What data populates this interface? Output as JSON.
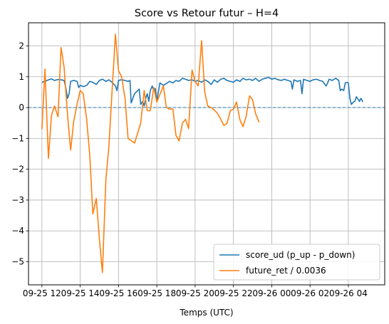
{
  "chart_data": {
    "type": "line",
    "title": "Score vs Retour futur – H=4",
    "xlabel": "Temps (UTC)",
    "ylabel": "",
    "ylim": [
      -5.75,
      2.75
    ],
    "xlim": [
      -0.35,
      8.95
    ],
    "grid": true,
    "legend_position": "lower-right",
    "x_ticks": [
      {
        "v": 0,
        "label": "09-25 12"
      },
      {
        "v": 1,
        "label": "09-25 14"
      },
      {
        "v": 2,
        "label": "09-25 16"
      },
      {
        "v": 3,
        "label": "09-25 18"
      },
      {
        "v": 4,
        "label": "09-25 20"
      },
      {
        "v": 5,
        "label": "09-25 22"
      },
      {
        "v": 6,
        "label": "09-26 00"
      },
      {
        "v": 7,
        "label": "09-26 02"
      },
      {
        "v": 8,
        "label": "09-26 04"
      }
    ],
    "y_ticks": [
      {
        "v": 2,
        "label": "2"
      },
      {
        "v": 1,
        "label": "1"
      },
      {
        "v": 0,
        "label": "0"
      },
      {
        "v": -1,
        "label": "−1"
      },
      {
        "v": -2,
        "label": "−2"
      },
      {
        "v": -3,
        "label": "−3"
      },
      {
        "v": -4,
        "label": "−4"
      },
      {
        "v": -5,
        "label": "−5"
      }
    ],
    "hline": {
      "y": 0,
      "color": "#1f77b4",
      "style": "dashed"
    },
    "series": [
      {
        "name": "score_ud (p_up - p_down)",
        "color": "#1f77b4",
        "points": [
          [
            0,
            0.82
          ],
          [
            0.08,
            0.85
          ],
          [
            0.17,
            0.9
          ],
          [
            0.25,
            0.93
          ],
          [
            0.33,
            0.88
          ],
          [
            0.42,
            0.91
          ],
          [
            0.5,
            0.9
          ],
          [
            0.58,
            0.88
          ],
          [
            0.63,
            0.6
          ],
          [
            0.67,
            0.3
          ],
          [
            0.71,
            0.45
          ],
          [
            0.75,
            0.85
          ],
          [
            0.83,
            0.88
          ],
          [
            0.92,
            0.85
          ],
          [
            0.96,
            0.65
          ],
          [
            1,
            0.72
          ],
          [
            1.08,
            0.68
          ],
          [
            1.17,
            0.72
          ],
          [
            1.25,
            0.85
          ],
          [
            1.33,
            0.82
          ],
          [
            1.42,
            0.75
          ],
          [
            1.5,
            0.88
          ],
          [
            1.58,
            0.92
          ],
          [
            1.67,
            0.85
          ],
          [
            1.75,
            0.9
          ],
          [
            1.83,
            0.82
          ],
          [
            1.92,
            0.7
          ],
          [
            1.96,
            0.55
          ],
          [
            2,
            0.88
          ],
          [
            2.08,
            0.9
          ],
          [
            2.17,
            0.88
          ],
          [
            2.25,
            0.85
          ],
          [
            2.3,
            0.88
          ],
          [
            2.33,
            0.15
          ],
          [
            2.42,
            0.45
          ],
          [
            2.5,
            0.55
          ],
          [
            2.54,
            0.6
          ],
          [
            2.58,
            0.1
          ],
          [
            2.63,
            0.2
          ],
          [
            2.67,
            0.05
          ],
          [
            2.71,
            0.3
          ],
          [
            2.75,
            0.45
          ],
          [
            2.79,
            0.2
          ],
          [
            2.83,
            0.55
          ],
          [
            2.88,
            0.7
          ],
          [
            2.92,
            0.55
          ],
          [
            2.96,
            0.62
          ],
          [
            3,
            0.2
          ],
          [
            3.04,
            0.5
          ],
          [
            3.08,
            0.8
          ],
          [
            3.17,
            0.72
          ],
          [
            3.25,
            0.78
          ],
          [
            3.33,
            0.85
          ],
          [
            3.42,
            0.8
          ],
          [
            3.5,
            0.88
          ],
          [
            3.58,
            0.85
          ],
          [
            3.67,
            0.95
          ],
          [
            3.75,
            0.92
          ],
          [
            3.83,
            0.88
          ],
          [
            3.92,
            0.9
          ],
          [
            4,
            0.85
          ],
          [
            4.08,
            0.88
          ],
          [
            4.17,
            0.82
          ],
          [
            4.25,
            0.9
          ],
          [
            4.33,
            0.85
          ],
          [
            4.42,
            0.75
          ],
          [
            4.5,
            0.9
          ],
          [
            4.58,
            0.82
          ],
          [
            4.67,
            0.92
          ],
          [
            4.75,
            0.95
          ],
          [
            4.83,
            0.88
          ],
          [
            4.92,
            0.85
          ],
          [
            5,
            0.82
          ],
          [
            5.08,
            0.9
          ],
          [
            5.17,
            0.85
          ],
          [
            5.25,
            0.95
          ],
          [
            5.33,
            0.9
          ],
          [
            5.42,
            0.92
          ],
          [
            5.5,
            0.88
          ],
          [
            5.58,
            0.95
          ],
          [
            5.67,
            0.85
          ],
          [
            5.75,
            0.92
          ],
          [
            5.83,
            0.95
          ],
          [
            5.92,
            0.98
          ],
          [
            6,
            0.92
          ],
          [
            6.08,
            0.95
          ],
          [
            6.17,
            0.9
          ],
          [
            6.25,
            0.88
          ],
          [
            6.33,
            0.92
          ],
          [
            6.42,
            0.88
          ],
          [
            6.5,
            0.85
          ],
          [
            6.54,
            0.6
          ],
          [
            6.58,
            0.9
          ],
          [
            6.67,
            0.85
          ],
          [
            6.75,
            0.88
          ],
          [
            6.79,
            0.45
          ],
          [
            6.83,
            0.92
          ],
          [
            6.92,
            0.88
          ],
          [
            7,
            0.85
          ],
          [
            7.08,
            0.9
          ],
          [
            7.17,
            0.92
          ],
          [
            7.25,
            0.88
          ],
          [
            7.33,
            0.85
          ],
          [
            7.42,
            0.7
          ],
          [
            7.46,
            0.8
          ],
          [
            7.5,
            0.92
          ],
          [
            7.58,
            0.88
          ],
          [
            7.67,
            0.95
          ],
          [
            7.75,
            0.88
          ],
          [
            7.79,
            0.55
          ],
          [
            7.83,
            0.6
          ],
          [
            7.88,
            0.55
          ],
          [
            7.92,
            0.8
          ],
          [
            7.96,
            0.82
          ],
          [
            8,
            0.8
          ],
          [
            8.04,
            0.3
          ],
          [
            8.08,
            0.1
          ],
          [
            8.13,
            0.18
          ],
          [
            8.17,
            0.2
          ],
          [
            8.21,
            0.35
          ],
          [
            8.25,
            0.28
          ],
          [
            8.29,
            0.2
          ],
          [
            8.33,
            0.3
          ],
          [
            8.38,
            0.18
          ]
        ]
      },
      {
        "name": "future_ret / 0.0036",
        "color": "#ff7f0e",
        "points": [
          [
            0,
            -0.7
          ],
          [
            0.08,
            1.25
          ],
          [
            0.17,
            -1.65
          ],
          [
            0.25,
            -0.25
          ],
          [
            0.33,
            0.05
          ],
          [
            0.42,
            -0.3
          ],
          [
            0.5,
            1.95
          ],
          [
            0.58,
            1.3
          ],
          [
            0.67,
            -0.25
          ],
          [
            0.75,
            -1.38
          ],
          [
            0.83,
            -0.45
          ],
          [
            0.92,
            0.12
          ],
          [
            1,
            0.55
          ],
          [
            1.08,
            0.45
          ],
          [
            1.17,
            -0.4
          ],
          [
            1.25,
            -1.55
          ],
          [
            1.33,
            -3.45
          ],
          [
            1.42,
            -2.95
          ],
          [
            1.5,
            -4.25
          ],
          [
            1.58,
            -5.35
          ],
          [
            1.67,
            -2.35
          ],
          [
            1.75,
            -1.25
          ],
          [
            1.83,
            0.5
          ],
          [
            1.92,
            2.38
          ],
          [
            2,
            1.2
          ],
          [
            2.08,
            1.0
          ],
          [
            2.17,
            0.3
          ],
          [
            2.25,
            -1.0
          ],
          [
            2.42,
            -1.15
          ],
          [
            2.58,
            -0.5
          ],
          [
            2.67,
            0.55
          ],
          [
            2.75,
            -0.1
          ],
          [
            2.83,
            -0.1
          ],
          [
            2.92,
            0.65
          ],
          [
            3,
            0.18
          ],
          [
            3.17,
            0.7
          ],
          [
            3.25,
            0.0
          ],
          [
            3.33,
            -0.05
          ],
          [
            3.42,
            -0.05
          ],
          [
            3.5,
            -0.9
          ],
          [
            3.58,
            -1.08
          ],
          [
            3.67,
            -0.5
          ],
          [
            3.75,
            -0.38
          ],
          [
            3.83,
            -0.68
          ],
          [
            3.92,
            1.22
          ],
          [
            4,
            0.85
          ],
          [
            4.08,
            0.7
          ],
          [
            4.17,
            2.17
          ],
          [
            4.25,
            0.52
          ],
          [
            4.33,
            0.05
          ],
          [
            4.42,
            0.0
          ],
          [
            4.5,
            -0.08
          ],
          [
            4.58,
            -0.18
          ],
          [
            4.67,
            -0.38
          ],
          [
            4.75,
            -0.58
          ],
          [
            4.83,
            -0.52
          ],
          [
            4.92,
            -0.1
          ],
          [
            5,
            -0.05
          ],
          [
            5.08,
            0.18
          ],
          [
            5.17,
            -0.4
          ],
          [
            5.25,
            -0.62
          ],
          [
            5.33,
            -0.3
          ],
          [
            5.42,
            0.38
          ],
          [
            5.5,
            0.25
          ],
          [
            5.58,
            -0.2
          ],
          [
            5.67,
            -0.48
          ]
        ]
      }
    ]
  }
}
